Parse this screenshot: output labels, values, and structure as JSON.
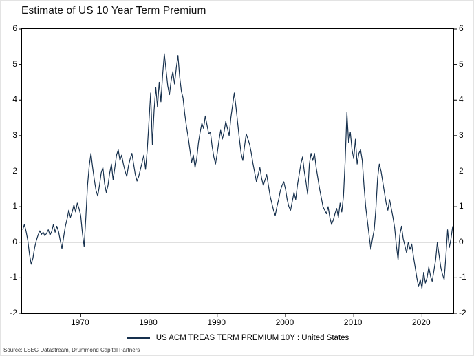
{
  "title": "Estimate of US 10 Year Term Premium",
  "legend": {
    "label": "US ACM TREAS TERM PREMIUM 10Y : United States"
  },
  "source": "Source: LSEG Datastream, Drummond Capital Partners",
  "colors": {
    "line": "#16304d",
    "zero_line": "#808080",
    "frame": "#000000",
    "tick": "#000000"
  },
  "chart_data": {
    "type": "line",
    "title": "Estimate of US 10 Year Term Premium",
    "xlabel": "",
    "ylabel": "",
    "xlim": [
      1961.4,
      2024.6
    ],
    "ylim": [
      -2,
      6
    ],
    "x_ticks": [
      1970,
      1980,
      1990,
      2000,
      2010,
      2020
    ],
    "y_ticks": [
      -2,
      -1,
      0,
      1,
      2,
      3,
      4,
      5,
      6
    ],
    "grid": false,
    "zero_line": true,
    "legend_position": "bottom",
    "series": [
      {
        "name": "US ACM TREAS TERM PREMIUM 10Y : United States",
        "x_start": 1961.5,
        "x_step": 0.25,
        "values": [
          0.35,
          0.5,
          0.3,
          0.05,
          -0.35,
          -0.62,
          -0.45,
          -0.15,
          0.05,
          0.2,
          0.32,
          0.22,
          0.28,
          0.18,
          0.25,
          0.35,
          0.2,
          0.3,
          0.5,
          0.28,
          0.45,
          0.3,
          0.05,
          -0.18,
          0.15,
          0.45,
          0.65,
          0.9,
          0.7,
          0.85,
          1.05,
          0.85,
          1.1,
          0.95,
          0.75,
          0.25,
          -0.12,
          0.7,
          1.6,
          2.15,
          2.5,
          2.1,
          1.75,
          1.45,
          1.3,
          1.6,
          1.95,
          2.1,
          1.65,
          1.4,
          1.6,
          1.95,
          2.2,
          1.75,
          2.1,
          2.45,
          2.6,
          2.3,
          2.45,
          2.2,
          2.0,
          1.85,
          2.15,
          2.35,
          2.5,
          2.2,
          1.9,
          1.72,
          1.85,
          2.05,
          2.25,
          2.45,
          2.05,
          2.6,
          3.4,
          4.2,
          2.75,
          3.7,
          4.35,
          3.8,
          4.5,
          3.95,
          4.7,
          5.3,
          4.85,
          4.4,
          4.15,
          4.55,
          4.8,
          4.45,
          4.9,
          5.25,
          4.65,
          4.25,
          4.05,
          3.6,
          3.25,
          2.95,
          2.6,
          2.25,
          2.45,
          2.1,
          2.35,
          2.8,
          3.1,
          3.35,
          3.2,
          3.55,
          3.3,
          3.05,
          3.1,
          2.7,
          2.4,
          2.2,
          2.5,
          2.85,
          3.15,
          2.9,
          3.1,
          3.4,
          3.2,
          3.0,
          3.5,
          3.85,
          4.2,
          3.8,
          3.35,
          2.9,
          2.5,
          2.3,
          2.7,
          3.05,
          2.9,
          2.75,
          2.5,
          2.2,
          1.95,
          1.7,
          1.9,
          2.1,
          1.8,
          1.6,
          1.75,
          1.9,
          1.6,
          1.3,
          1.1,
          0.9,
          0.75,
          1.0,
          1.2,
          1.45,
          1.6,
          1.7,
          1.5,
          1.2,
          1.0,
          0.9,
          1.15,
          1.4,
          1.2,
          1.6,
          1.9,
          2.2,
          2.4,
          2.0,
          1.7,
          1.35,
          2.2,
          2.5,
          2.3,
          2.5,
          2.1,
          1.8,
          1.5,
          1.25,
          1.0,
          0.9,
          0.8,
          1.0,
          0.7,
          0.5,
          0.62,
          0.8,
          0.95,
          0.7,
          1.1,
          0.85,
          1.3,
          2.3,
          3.65,
          2.8,
          3.1,
          2.6,
          2.35,
          2.9,
          2.2,
          2.5,
          2.6,
          2.3,
          1.6,
          1.0,
          0.6,
          0.2,
          -0.2,
          0.1,
          0.35,
          0.95,
          1.8,
          2.2,
          2.0,
          1.7,
          1.4,
          1.1,
          0.9,
          1.2,
          0.95,
          0.7,
          0.4,
          -0.1,
          -0.5,
          0.2,
          0.45,
          0.1,
          -0.1,
          -0.3,
          0.0,
          -0.2,
          -0.05,
          -0.4,
          -0.7,
          -1.0,
          -1.25,
          -1.05,
          -1.3,
          -0.85,
          -1.15,
          -1.0,
          -0.7,
          -0.95,
          -1.1,
          -0.8,
          -0.5,
          0.0,
          -0.35,
          -0.7,
          -0.9,
          -1.05,
          -0.4,
          0.35,
          -0.15,
          0.1,
          0.45
        ]
      }
    ]
  }
}
